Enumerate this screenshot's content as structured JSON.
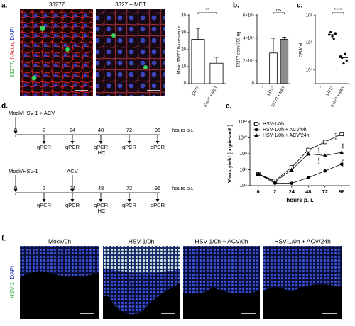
{
  "figure": {
    "panel_labels": [
      "a.",
      "b.",
      "c.",
      "d.",
      "e.",
      "f."
    ],
    "image_panel_a": {
      "titles": [
        "33277",
        "3327 + MET"
      ],
      "channel_labels": [
        "33277,",
        "f-Actin,",
        "DAPI"
      ]
    },
    "timeline": [
      {
        "treatment": "Mock/HSV-1 + ACV",
        "ticks": [
          "0",
          "2",
          "24",
          "48",
          "72",
          "96"
        ],
        "unit": "hours p.i.",
        "samples": [
          [
            "qPCR"
          ],
          [
            "qPCR"
          ],
          [
            "qPCR",
            "IHC"
          ],
          [
            "qPCR"
          ],
          [
            "qPCR"
          ]
        ]
      },
      {
        "treatment": "Mock/HSV-1",
        "drug": "ACV",
        "ticks": [
          "0",
          "2",
          "24",
          "48",
          "72",
          "96"
        ],
        "unit": "hours p.i.",
        "samples": [
          [
            "qPCR"
          ],
          [
            "qPCR"
          ],
          [
            "qPCR",
            "IHC"
          ],
          [
            "qPCR"
          ],
          [
            "qPCR"
          ]
        ]
      }
    ],
    "image_panel_f": {
      "titles": [
        "Mock/0h",
        "HSV-1/0h",
        "HSV-1/0h + ACV/0h",
        "HSV-1/0h + ACV/24h"
      ],
      "channel_labels": [
        "HSV-1,",
        "DAPI"
      ]
    }
  },
  "chart_data": [
    {
      "type": "bar",
      "y_label": "Mean 33277 fluorescence",
      "categories": [
        "33277",
        "33277 + MET"
      ],
      "values": [
        26,
        12
      ],
      "errors": [
        6.5,
        3.5
      ],
      "colors": [
        "#ffffff",
        "#ffffff"
      ],
      "ylim": [
        0,
        40
      ],
      "yticks": [
        0,
        10,
        20,
        30,
        40
      ],
      "significance": [
        "**"
      ]
    },
    {
      "type": "bar",
      "y_label": "33277 copy/300 ng",
      "categories": [
        "-",
        "33277",
        "33277 + MET"
      ],
      "values": [
        0,
        270000,
        390000
      ],
      "errors": [
        0,
        130000,
        20000
      ],
      "colors": [
        "#ffffff",
        "#ffffff",
        "#8c8c8c"
      ],
      "ylim": [
        0,
        600000
      ],
      "yticks": [
        0,
        {
          "value": 200000,
          "label": "2×10⁵"
        },
        {
          "value": 400000,
          "label": "4×10⁵"
        },
        {
          "value": 600000,
          "label": "6×10⁵"
        }
      ],
      "significance": [
        "ns"
      ]
    },
    {
      "type": "scatter",
      "y_label": "CFU/mL",
      "categories": [
        "-",
        "33277",
        "33277 + MET"
      ],
      "log": true,
      "values": [
        [],
        [
          4000000,
          6000000,
          3000000,
          2000000,
          5000000
        ],
        [
          100000,
          80000,
          30000,
          150000,
          50000
        ]
      ],
      "means": [
        null,
        4000000,
        80000
      ],
      "color": "#000000",
      "ylim": [
        1000,
        100000000
      ],
      "yticks": [
        {
          "value": 10000,
          "label": "10⁴"
        },
        {
          "value": 1000000,
          "label": "10⁶"
        },
        {
          "value": 100000000,
          "label": "10⁸"
        }
      ],
      "significance": [
        "****"
      ]
    },
    {
      "type": "line",
      "y_label": "Virus yield [copies/mL]",
      "x_label": "hours p. i.",
      "log": true,
      "categories": [
        "0",
        "2",
        "24",
        "48",
        "72",
        "96"
      ],
      "series": [
        {
          "name": "HSV-1/0h",
          "color": "#000000",
          "marker": "square-open",
          "values": [
            300000,
            40000,
            2000000,
            300000000,
            3000000000,
            30000000000
          ]
        },
        {
          "name": "HSV-1/0h + ACV/0h",
          "color": "#000000",
          "marker": "circle",
          "values": [
            300000,
            20000,
            20000,
            100000,
            700000,
            5000000
          ]
        },
        {
          "name": "HSV-1/0h + ACV/24h",
          "color": "#000000",
          "marker": "triangle",
          "values": [
            300000,
            30000,
            1000000,
            100000000,
            60000000,
            150000000
          ]
        }
      ],
      "ylim": [
        10000,
        1000000000000
      ],
      "yticks": [
        {
          "value": 10000,
          "label": "10⁴"
        },
        {
          "value": 1000000,
          "label": "10⁶"
        },
        {
          "value": 100000000,
          "label": "10⁸"
        },
        {
          "value": 10000000000,
          "label": "10¹⁰"
        },
        {
          "value": 1000000000000,
          "label": "10¹²"
        }
      ],
      "legend": "top-left",
      "significance": [
        "***",
        "****",
        "****",
        "***",
        "****"
      ]
    }
  ]
}
